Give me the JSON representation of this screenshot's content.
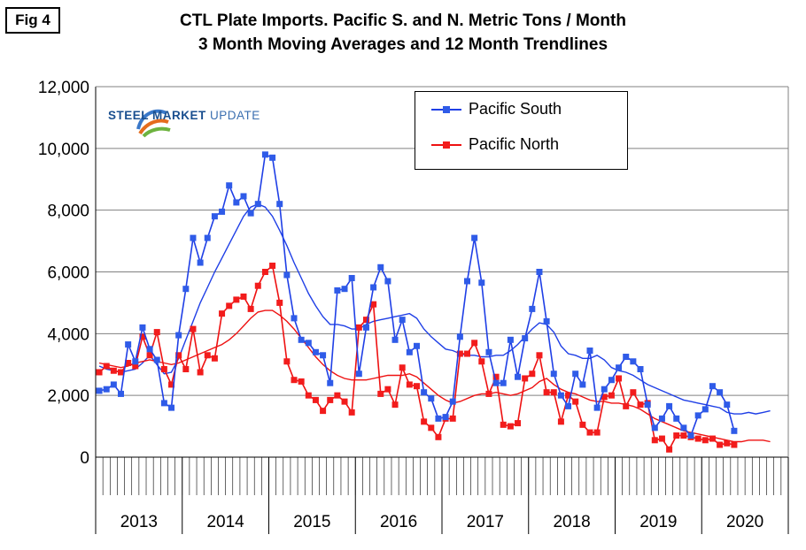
{
  "figure": {
    "label": "Fig 4",
    "title_line1": "CTL Plate Imports. Pacific S. and N. Metric Tons / Month",
    "title_line2": "3 Month Moving Averages and 12 Month Trendlines"
  },
  "logo": {
    "text_bold": "STEEL MARKET",
    "text_light": " UPDATE",
    "colors": [
      "#3a78c9",
      "#e46c1e",
      "#6db33f"
    ]
  },
  "chart_data": {
    "type": "line",
    "title": "CTL Plate Imports. Pacific S. and N. Metric Tons / Month",
    "subtitle": "3 Month Moving Averages and 12 Month Trendlines",
    "xlabel": "",
    "ylabel": "",
    "ylim": [
      0,
      12000
    ],
    "yticks": [
      0,
      2000,
      4000,
      6000,
      8000,
      10000,
      12000
    ],
    "ytick_labels": [
      "0",
      "2,000",
      "4,000",
      "6,000",
      "8,000",
      "10,000",
      "12,000"
    ],
    "x_start": "2013-01",
    "months_total": 96,
    "year_labels": [
      "2013",
      "2014",
      "2015",
      "2016",
      "2017",
      "2018",
      "2019",
      "2020"
    ],
    "grid": true,
    "legend_position": "top-right",
    "series": [
      {
        "name": "Pacific South",
        "color": "#1f3fe6",
        "marker": "square",
        "values": [
          2150,
          2200,
          2350,
          2050,
          3650,
          3100,
          4200,
          3500,
          3150,
          1750,
          1600,
          3950,
          5450,
          7100,
          6300,
          7100,
          7800,
          7950,
          8800,
          8250,
          8450,
          7900,
          8200,
          9800,
          9700,
          8200,
          5900,
          4500,
          3800,
          3700,
          3400,
          3300,
          2400,
          5400,
          5450,
          5800,
          2700,
          4200,
          5500,
          6150,
          5700,
          3800,
          4450,
          3400,
          3600,
          2100,
          1900,
          1250,
          1300,
          1800,
          3900,
          5700,
          7100,
          5650,
          3400,
          2400,
          2400,
          3800,
          2600,
          3850,
          4800,
          6000,
          4400,
          2700,
          2000,
          1650,
          2700,
          2350,
          3450,
          1600,
          2200,
          2500,
          2900,
          3250,
          3100,
          2850,
          1700,
          950,
          1250,
          1650,
          1250,
          950,
          700,
          1350,
          1550,
          2300,
          2100,
          1700,
          850
        ],
        "marker_color": "#2f5be8"
      },
      {
        "name": "Pacific North",
        "color": "#ee1111",
        "marker": "square",
        "values": [
          2750,
          2950,
          2800,
          2750,
          3050,
          2950,
          3900,
          3300,
          4050,
          2850,
          2350,
          3300,
          2850,
          4150,
          2750,
          3300,
          3200,
          4650,
          4900,
          5100,
          5200,
          4800,
          5550,
          6000,
          6200,
          5000,
          3100,
          2500,
          2450,
          2000,
          1850,
          1500,
          1850,
          2000,
          1800,
          1450,
          4200,
          4450,
          4950,
          2050,
          2200,
          1700,
          2900,
          2350,
          2300,
          1150,
          950,
          650,
          1250,
          1250,
          3350,
          3350,
          3700,
          3100,
          2050,
          2600,
          1050,
          1000,
          1100,
          2550,
          2700,
          3300,
          2100,
          2100,
          1150,
          2000,
          1800,
          1050,
          800,
          800,
          1950,
          2000,
          2550,
          1650,
          2100,
          1700,
          1750,
          550,
          600,
          250,
          700,
          700,
          650,
          600,
          550,
          600,
          400,
          450,
          400
        ],
        "marker_color": "#f21c1c"
      },
      {
        "name": "Pacific South trend",
        "color": "#1f3fe6",
        "marker": "none",
        "values": [
          2950,
          2850,
          2800,
          2750,
          2800,
          2850,
          3050,
          3300,
          3000,
          2700,
          2750,
          3200,
          3800,
          4400,
          5000,
          5500,
          6000,
          6450,
          6900,
          7350,
          7800,
          8100,
          8200,
          8100,
          7800,
          7350,
          6850,
          6300,
          5800,
          5300,
          4900,
          4550,
          4300,
          4300,
          4250,
          4150,
          4150,
          4300,
          4400,
          4450,
          4500,
          4550,
          4600,
          4650,
          4500,
          4150,
          3900,
          3700,
          3500,
          3450,
          3350,
          3300,
          3300,
          3250,
          3250,
          3300,
          3300,
          3450,
          3650,
          3900,
          4150,
          4350,
          4300,
          4050,
          3600,
          3350,
          3300,
          3200,
          3200,
          3300,
          3150,
          2900,
          2800,
          2750,
          2650,
          2500,
          2350,
          2250,
          2150,
          2050,
          1950,
          1850,
          1800,
          1750,
          1700,
          1650,
          1600,
          1450,
          1400,
          1400,
          1450,
          1400,
          1450,
          1500
        ],
        "marker_color": "#1f3fe6"
      },
      {
        "name": "Pacific North trend",
        "color": "#ee1111",
        "marker": "none",
        "values": [
          3050,
          3000,
          2950,
          2900,
          2950,
          3050,
          3100,
          3150,
          3100,
          3050,
          3000,
          3050,
          3150,
          3250,
          3350,
          3450,
          3550,
          3650,
          3800,
          4000,
          4250,
          4500,
          4700,
          4750,
          4750,
          4600,
          4400,
          4150,
          3850,
          3550,
          3250,
          3000,
          2800,
          2650,
          2550,
          2500,
          2500,
          2500,
          2550,
          2600,
          2650,
          2650,
          2650,
          2700,
          2600,
          2400,
          2200,
          2000,
          1850,
          1750,
          1800,
          1900,
          2000,
          2050,
          2050,
          2100,
          2050,
          2000,
          2050,
          2150,
          2250,
          2450,
          2550,
          2350,
          2200,
          2100,
          2050,
          1950,
          1850,
          1800,
          1800,
          1750,
          1750,
          1700,
          1650,
          1550,
          1400,
          1250,
          1150,
          1050,
          950,
          850,
          800,
          750,
          700,
          650,
          600,
          550,
          500,
          500,
          550,
          550,
          550,
          500
        ],
        "marker_color": "#ee1111"
      }
    ]
  }
}
